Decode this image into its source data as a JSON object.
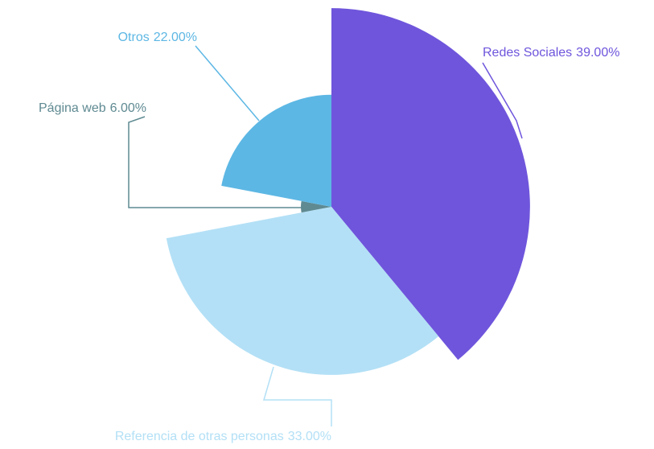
{
  "chart_data": {
    "type": "rose-pie",
    "categories": [
      "Redes Sociales",
      "Referencia de otras personas",
      "Página web",
      "Otros"
    ],
    "values": [
      39,
      33,
      6,
      22
    ],
    "value_labels": [
      "39.00%",
      "33.00%",
      "6.00%",
      "22.00%"
    ],
    "colors": [
      "#6f55dc",
      "#b3e0f6",
      "#5f8a92",
      "#5db7e4"
    ]
  }
}
